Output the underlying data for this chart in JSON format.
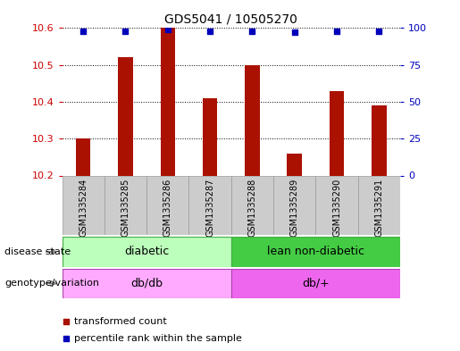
{
  "title": "GDS5041 / 10505270",
  "samples": [
    "GSM1335284",
    "GSM1335285",
    "GSM1335286",
    "GSM1335287",
    "GSM1335288",
    "GSM1335289",
    "GSM1335290",
    "GSM1335291"
  ],
  "bar_values": [
    10.3,
    10.52,
    10.6,
    10.41,
    10.5,
    10.26,
    10.43,
    10.39
  ],
  "percentile_values": [
    98,
    98,
    99,
    98,
    98,
    97,
    98,
    98
  ],
  "ylim_left": [
    10.2,
    10.6
  ],
  "ylim_right": [
    0,
    100
  ],
  "yticks_left": [
    10.2,
    10.3,
    10.4,
    10.5,
    10.6
  ],
  "yticks_right": [
    0,
    25,
    50,
    75,
    100
  ],
  "bar_color": "#aa1100",
  "dot_color": "#0000bb",
  "disease_state_labels": [
    "diabetic",
    "lean non-diabetic"
  ],
  "disease_state_color_left": "#bbffbb",
  "disease_state_color_right": "#44cc44",
  "genotype_color_left": "#ffaaff",
  "genotype_color_right": "#ee66ee",
  "genotype_labels": [
    "db/db",
    "db/+"
  ],
  "legend_items": [
    "transformed count",
    "percentile rank within the sample"
  ],
  "grid_color": "#000000",
  "label_left_color": "#cc0000",
  "label_right_color": "#0000bb",
  "row_label_disease": "disease state",
  "row_label_genotype": "genotype/variation",
  "sample_box_color": "#cccccc",
  "sample_box_edge": "#999999"
}
